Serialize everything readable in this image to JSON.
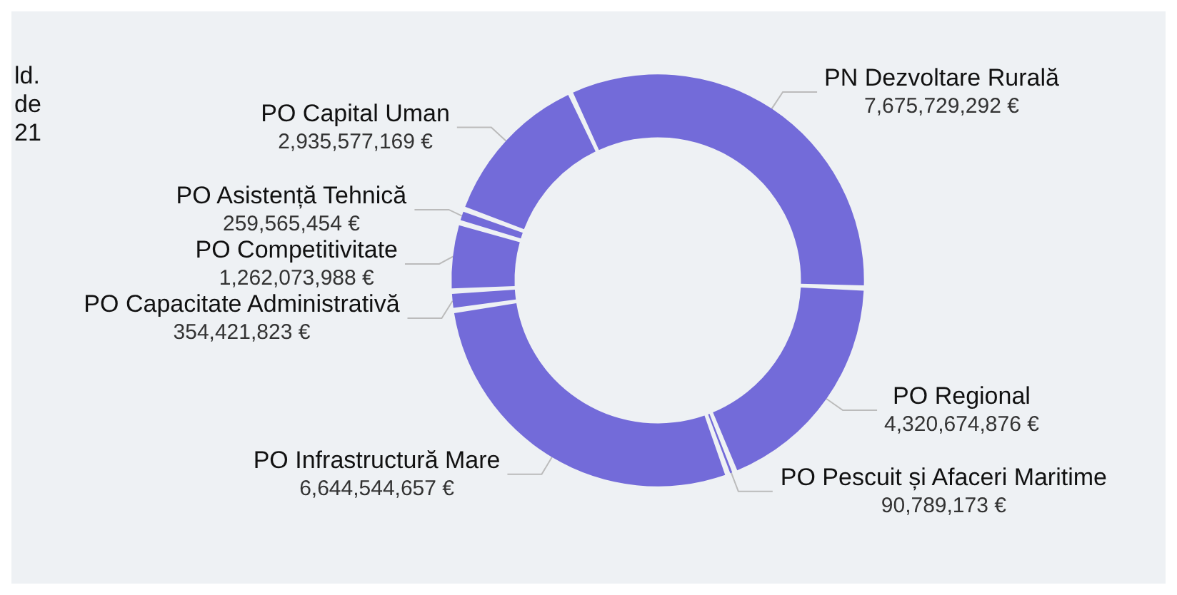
{
  "chart_data": {
    "type": "donut",
    "categories": [
      "PN Dezvoltare Rurală",
      "PO Regional",
      "PO Pescuit și Afaceri Maritime",
      "PO Infrastructură Mare",
      "PO Capacitate Administrativă",
      "PO Competitivitate",
      "PO Asistență Tehnică",
      "PO Capital Uman"
    ],
    "values": [
      7675729292,
      4320674876,
      90789173,
      6644544657,
      354421823,
      1262073988,
      259565454,
      2935577169
    ],
    "value_labels": [
      "7,675,729,292 €",
      "4,320,674,876 €",
      "90,789,173 €",
      "6,644,544,657 €",
      "354,421,823 €",
      "1,262,073,988 €",
      "259,565,454 €",
      "2,935,577,169 €"
    ],
    "colors": [
      "#736bd9",
      "#736bd9",
      "#736bd9",
      "#736bd9",
      "#736bd9",
      "#736bd9",
      "#736bd9",
      "#736bd9"
    ],
    "annotations": [
      "ld.\nde\n21"
    ],
    "legend": false
  }
}
